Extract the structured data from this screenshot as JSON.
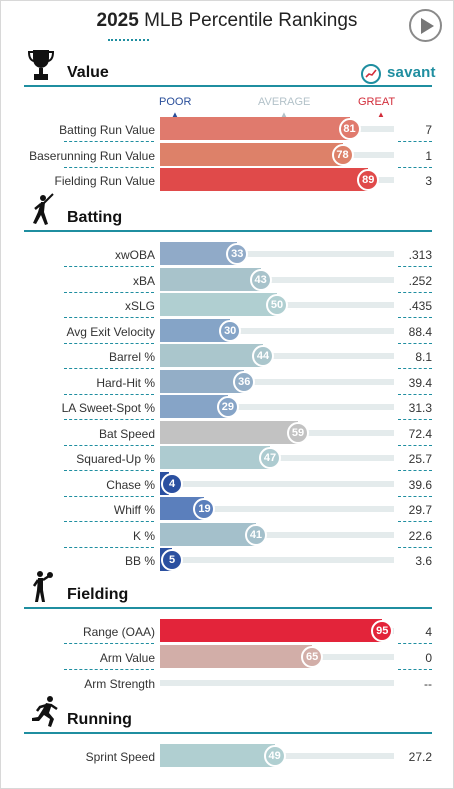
{
  "header": {
    "year": "2025",
    "title": "MLB Percentile Rankings"
  },
  "brand": {
    "name": "savant",
    "color": "#1f8ea0"
  },
  "scale": {
    "poor": "POOR",
    "average": "AVERAGE",
    "great": "GREAT"
  },
  "sections": [
    {
      "id": "value",
      "title": "Value",
      "icon": "trophy-icon",
      "rows": [
        {
          "label": "Batting Run Value",
          "percentile": 81,
          "value": "7",
          "color": "#e07a6d"
        },
        {
          "label": "Baserunning Run Value",
          "percentile": 78,
          "value": "1",
          "color": "#dd8169"
        },
        {
          "label": "Fielding Run Value",
          "percentile": 89,
          "value": "3",
          "color": "#e04a4a"
        }
      ]
    },
    {
      "id": "batting",
      "title": "Batting",
      "icon": "batter-icon",
      "rows": [
        {
          "label": "xwOBA",
          "percentile": 33,
          "value": ".313",
          "color": "#90aac8"
        },
        {
          "label": "xBA",
          "percentile": 43,
          "value": ".252",
          "color": "#a8c3cb"
        },
        {
          "label": "xSLG",
          "percentile": 50,
          "value": ".435",
          "color": "#b0cfd1"
        },
        {
          "label": "Avg Exit Velocity",
          "percentile": 30,
          "value": "88.4",
          "color": "#85a4c7"
        },
        {
          "label": "Barrel %",
          "percentile": 44,
          "value": "8.1",
          "color": "#aac6cc"
        },
        {
          "label": "Hard-Hit %",
          "percentile": 36,
          "value": "39.4",
          "color": "#93aec7"
        },
        {
          "label": "LA Sweet-Spot %",
          "percentile": 29,
          "value": "31.3",
          "color": "#86a4c7"
        },
        {
          "label": "Bat Speed",
          "percentile": 59,
          "value": "72.4",
          "color": "#c2c2c2"
        },
        {
          "label": "Squared-Up %",
          "percentile": 47,
          "value": "25.7",
          "color": "#adcbd0"
        },
        {
          "label": "Chase %",
          "percentile": 4,
          "value": "39.6",
          "color": "#2b50a0"
        },
        {
          "label": "Whiff %",
          "percentile": 19,
          "value": "29.7",
          "color": "#5b7fbc"
        },
        {
          "label": "K %",
          "percentile": 41,
          "value": "22.6",
          "color": "#a4c0cb"
        },
        {
          "label": "BB %",
          "percentile": 5,
          "value": "3.6",
          "color": "#2b50a0"
        }
      ]
    },
    {
      "id": "fielding",
      "title": "Fielding",
      "icon": "fielder-icon",
      "rows": [
        {
          "label": "Range (OAA)",
          "percentile": 95,
          "value": "4",
          "color": "#e3243a"
        },
        {
          "label": "Arm Value",
          "percentile": 65,
          "value": "0",
          "color": "#d2aea8"
        },
        {
          "label": "Arm Strength",
          "percentile": null,
          "value": "--",
          "color": "#e4ebec"
        }
      ]
    },
    {
      "id": "running",
      "title": "Running",
      "icon": "runner-icon",
      "rows": [
        {
          "label": "Sprint Speed",
          "percentile": 49,
          "value": "27.2",
          "color": "#b0cfd1"
        }
      ]
    }
  ]
}
